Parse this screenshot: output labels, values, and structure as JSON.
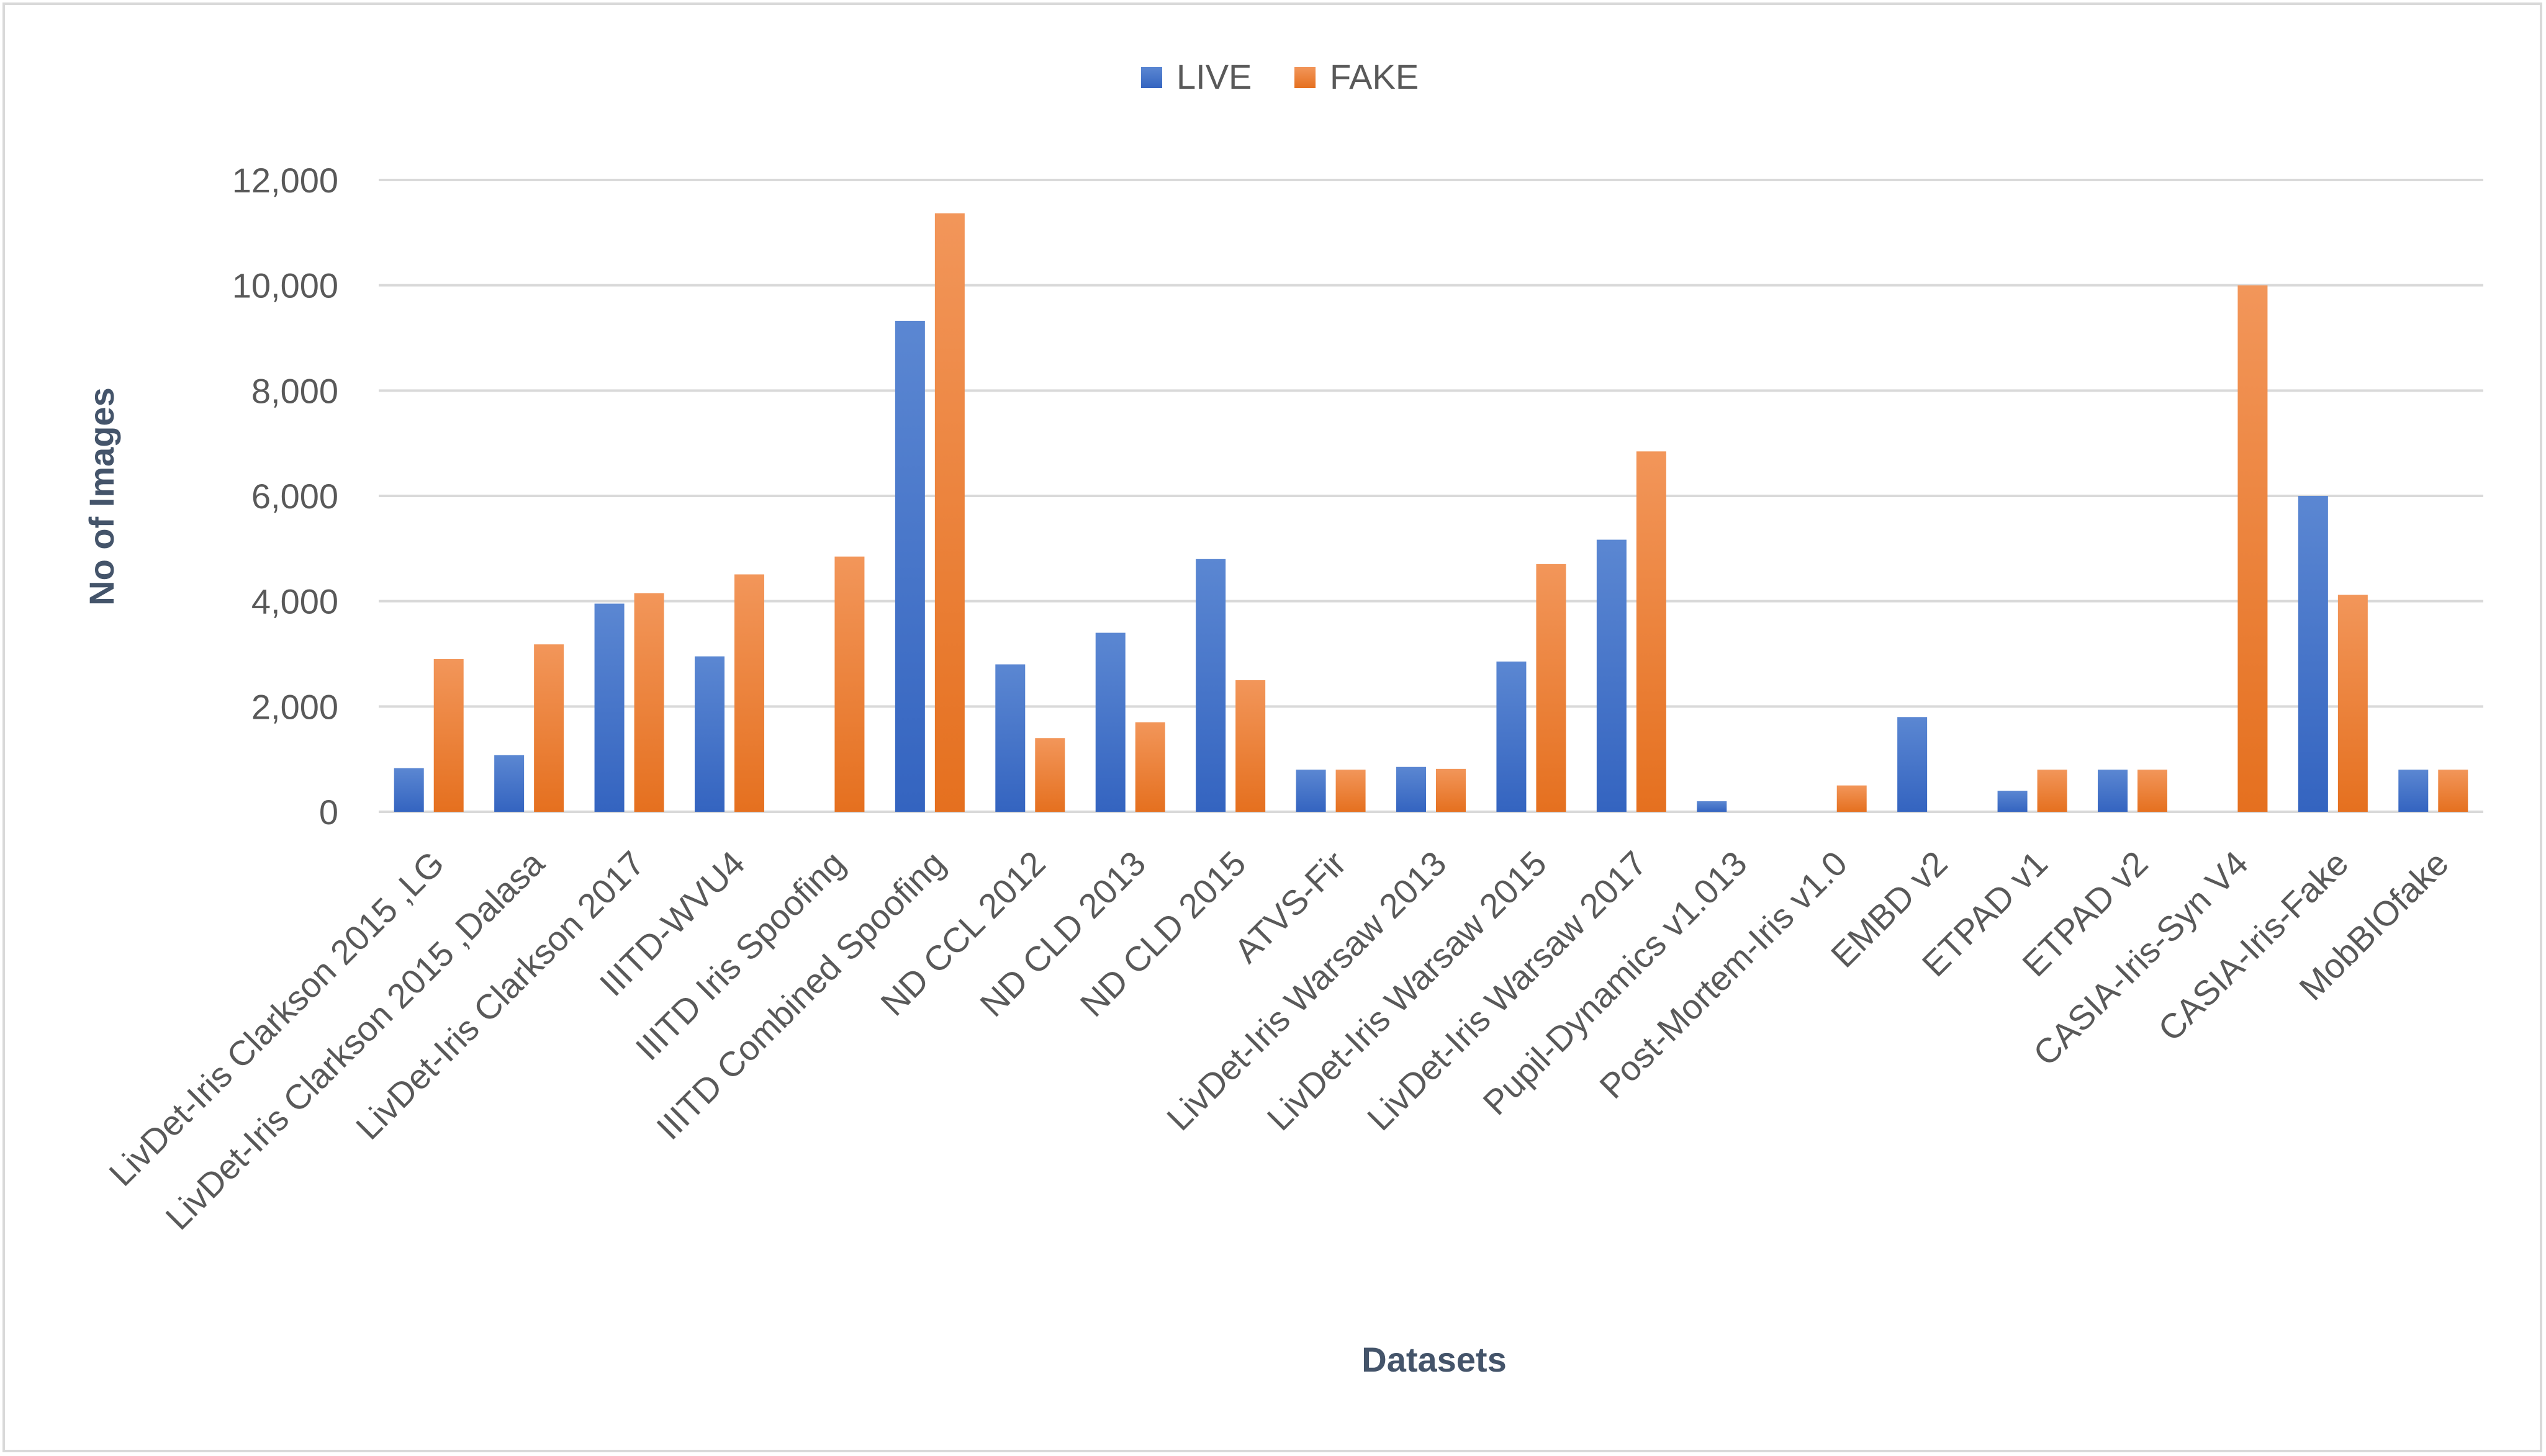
{
  "chart_data": {
    "type": "bar",
    "title": "",
    "xlabel": "Datasets",
    "ylabel": "No of Images",
    "ylim": [
      0,
      12000
    ],
    "yticks": [
      0,
      2000,
      4000,
      6000,
      8000,
      10000,
      12000
    ],
    "ytick_labels": [
      "0",
      "2,000",
      "4,000",
      "6,000",
      "8,000",
      "10,000",
      "12,000"
    ],
    "grid": true,
    "legend_position": "top-center",
    "categories": [
      "LivDet-Iris Clarkson 2015 ,LG",
      "LivDet-Iris Clarkson 2015 ,Dalasa",
      "LivDet-Iris Clarkson 2017",
      "IIITD-WVU4",
      "IIITD Iris Spoofing",
      "IIITD Combined Spoofing",
      "ND CCL 2012",
      "ND CLD 2013",
      "ND CLD 2015",
      "ATVS-Fir",
      "LivDet-Iris Warsaw 2013",
      "LivDet-Iris Warsaw 2015",
      "LivDet-Iris Warsaw 2017",
      "Pupil-Dynamics v1.013",
      "Post-Mortem-Iris v1.0",
      "EMBD v2",
      "ETPAD v1",
      "ETPAD v2",
      "CASIA-Iris-Syn V4",
      "CASIA-Iris-Fake",
      "MobBIOfake"
    ],
    "series": [
      {
        "name": "LIVE",
        "color": "#4472c4",
        "values": [
          828,
          1075,
          3954,
          2952,
          0,
          9325,
          2800,
          3400,
          4800,
          800,
          852,
          2854,
          5168,
          200,
          0,
          1800,
          400,
          800,
          0,
          6000,
          800
        ]
      },
      {
        "name": "FAKE",
        "color": "#ed7d31",
        "values": [
          2900,
          3180,
          4150,
          4509,
          4848,
          11368,
          1400,
          1700,
          2500,
          800,
          815,
          4705,
          6845,
          0,
          500,
          0,
          800,
          800,
          10000,
          4120,
          800
        ]
      }
    ]
  }
}
